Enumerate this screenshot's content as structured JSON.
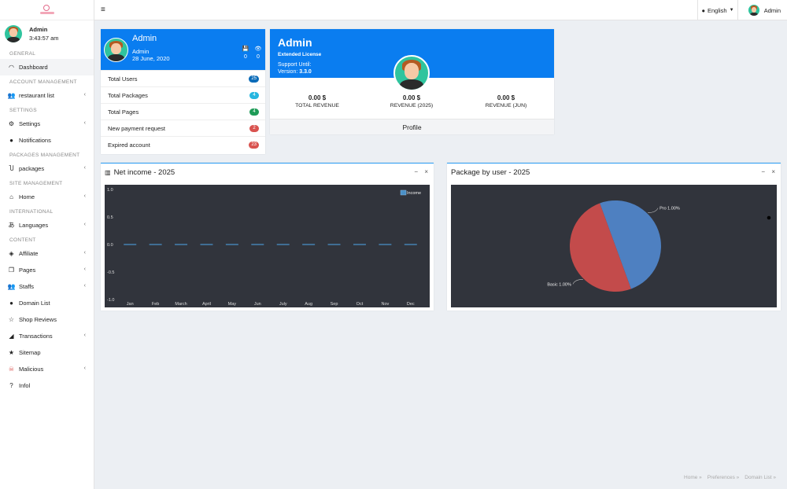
{
  "sidebar": {
    "user": {
      "name": "Admin",
      "time": "3:43:57 am"
    },
    "items": [
      {
        "type": "section",
        "label": "GENERAL"
      },
      {
        "type": "item",
        "label": "Dashboard",
        "icon": "dashboard-icon",
        "glyph": "◠",
        "active": true
      },
      {
        "type": "section",
        "label": "ACCOUNT MANAGEMENT"
      },
      {
        "type": "item",
        "label": "restaurant list",
        "icon": "users-icon",
        "glyph": "👥",
        "chevron": true
      },
      {
        "type": "section",
        "label": "SETTINGS"
      },
      {
        "type": "item",
        "label": "Settings",
        "icon": "gears-icon",
        "glyph": "⚙",
        "chevron": true
      },
      {
        "type": "item",
        "label": "Notifications",
        "icon": "bell-icon",
        "glyph": "●"
      },
      {
        "type": "section",
        "label": "PACKAGES MANAGEMENT"
      },
      {
        "type": "item",
        "label": "packages",
        "icon": "magnet-icon",
        "glyph": "Ⴎ",
        "chevron": true
      },
      {
        "type": "section",
        "label": "SITE MANAGEMENT"
      },
      {
        "type": "item",
        "label": "Home",
        "icon": "home-icon",
        "glyph": "⌂",
        "chevron": true
      },
      {
        "type": "section",
        "label": "INTERNATIONAL"
      },
      {
        "type": "item",
        "label": "Languages",
        "icon": "language-icon",
        "glyph": "あ",
        "chevron": true
      },
      {
        "type": "section",
        "label": "CONTENT"
      },
      {
        "type": "item",
        "label": "Affiliate",
        "icon": "cube-icon",
        "glyph": "◈",
        "chevron": true
      },
      {
        "type": "item",
        "label": "Pages",
        "icon": "pages-icon",
        "glyph": "❐",
        "chevron": true
      },
      {
        "type": "item",
        "label": "Staffs",
        "icon": "staff-icon",
        "glyph": "👥",
        "chevron": true
      },
      {
        "type": "item",
        "label": "Domain List",
        "icon": "globe-icon",
        "glyph": "●"
      },
      {
        "type": "item",
        "label": "Shop Reviews",
        "icon": "star-icon",
        "glyph": "☆"
      },
      {
        "type": "item",
        "label": "Transactions",
        "icon": "handshake-icon",
        "glyph": "◢",
        "chevron": true
      },
      {
        "type": "item",
        "label": "Sitemap",
        "icon": "sitemap-icon",
        "glyph": "★"
      },
      {
        "type": "item",
        "label": "Malicious",
        "icon": "skull-icon",
        "glyph": "☠",
        "chevron": true,
        "color": "#d9534f"
      },
      {
        "type": "item",
        "label": "Infol",
        "icon": "question-icon",
        "glyph": "?"
      }
    ]
  },
  "topbar": {
    "language": "English",
    "user": "Admin"
  },
  "admin_card": {
    "name": "Admin",
    "role": "Admin",
    "date": "28 June, 2020",
    "stats": [
      {
        "icon": "save-icon",
        "glyph": "💾",
        "value": "0"
      },
      {
        "icon": "eye-icon",
        "glyph": "👁",
        "value": "0"
      }
    ],
    "rows": [
      {
        "label": "Total Users",
        "count": "25",
        "color": "#0b6bb8"
      },
      {
        "label": "Total Packages",
        "count": "4",
        "color": "#25b6e0"
      },
      {
        "label": "Total Pages",
        "count": "4",
        "color": "#1e9b57"
      },
      {
        "label": "New payment request",
        "count": "2",
        "color": "#d9534f"
      },
      {
        "label": "Expired account",
        "count": "23",
        "color": "#d9534f"
      }
    ]
  },
  "license_card": {
    "title": "Admin",
    "license": "Extended License",
    "support": "Support Until:",
    "version_label": "Version:",
    "version": "3.3.0",
    "kpis": [
      {
        "value": "0.00 $",
        "label": "TOTAL REVENUE"
      },
      {
        "value": "0.00 $",
        "label": "REVENUE (2025)"
      },
      {
        "value": "0.00 $",
        "label": "REVENUE (JUN)"
      }
    ],
    "footer": "Profile"
  },
  "net_income": {
    "title": "Net income - 2025",
    "minimize": "−",
    "close": "×",
    "chart_data": {
      "type": "line",
      "categories": [
        "Jan",
        "Feb",
        "March",
        "April",
        "May",
        "Jun",
        "July",
        "Aug",
        "Sep",
        "Oct",
        "Nov",
        "Dec"
      ],
      "series": [
        {
          "name": "Income",
          "values": [
            0,
            0,
            0,
            0,
            0,
            0,
            0,
            0,
            0,
            0,
            0,
            0
          ],
          "color": "#4a90c8"
        }
      ],
      "ylim": [
        -1.0,
        1.0
      ],
      "yticks": [
        "1.0",
        "0.5",
        "0.0",
        "-0.5",
        "-1.0"
      ],
      "legend": "top-right",
      "background": "#31343c"
    }
  },
  "package_chart": {
    "title": "Package by user - 2025",
    "minimize": "−",
    "close": "×",
    "chart_data": {
      "type": "pie",
      "slices": [
        {
          "label": "Pro 1.00%",
          "value": 1,
          "color": "#4e80c1"
        },
        {
          "label": "Basic 1.00%",
          "value": 1,
          "color": "#c34b4b"
        }
      ],
      "background": "#31343c"
    }
  },
  "footer": {
    "links": [
      "Home »",
      "Preferences »",
      "Domain List »"
    ]
  }
}
